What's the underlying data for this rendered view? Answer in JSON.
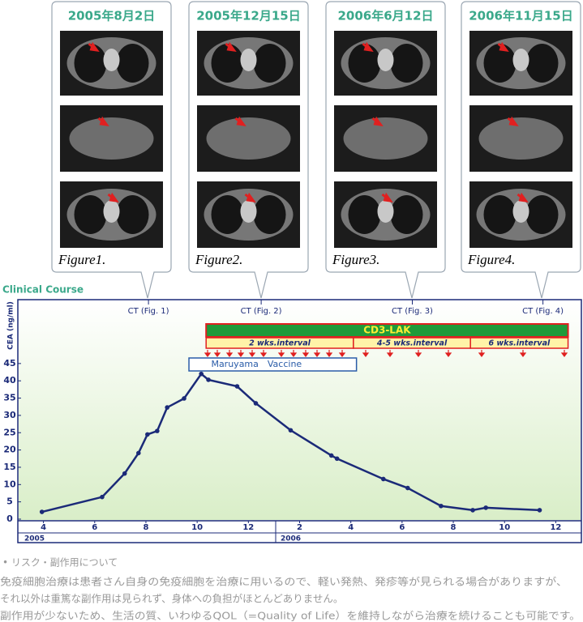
{
  "figures": [
    {
      "date": "2005年8月2日",
      "caption": "Figure1."
    },
    {
      "date": "2005年12月15日",
      "caption": "Figure2."
    },
    {
      "date": "2006年6月12日",
      "caption": "Figure3."
    },
    {
      "date": "2006年11月15日",
      "caption": "Figure4."
    }
  ],
  "chart_data": {
    "type": "line",
    "section_label": "Clinical Course",
    "y_label": "CEA (ng/ml)",
    "x": [
      3.94,
      6.29,
      7.17,
      7.71,
      8.06,
      8.44,
      8.83,
      9.49,
      10.16,
      10.44,
      11.56,
      12.29,
      13.65,
      15.24,
      15.46,
      17.27,
      18.22,
      19.52,
      20.76,
      21.27,
      23.37
    ],
    "values": [
      2.1,
      6.4,
      13.2,
      19.1,
      24.5,
      25.5,
      32.3,
      34.9,
      42,
      40.3,
      38.4,
      33.5,
      25.7,
      18.4,
      17.5,
      11.6,
      9.0,
      3.8,
      2.6,
      3.3,
      2.6
    ],
    "color": "#1b2a78",
    "xlim": [
      3,
      25
    ],
    "ylim": [
      0,
      63
    ],
    "xticks": [
      {
        "value": 4,
        "label": "4"
      },
      {
        "value": 6,
        "label": "6"
      },
      {
        "value": 8,
        "label": "8"
      },
      {
        "value": 10,
        "label": "10"
      },
      {
        "value": 12,
        "label": "12"
      },
      {
        "value": 14,
        "label": "2"
      },
      {
        "value": 16,
        "label": "4"
      },
      {
        "value": 18,
        "label": "6"
      },
      {
        "value": 20,
        "label": "8"
      },
      {
        "value": 22,
        "label": "10"
      },
      {
        "value": 24,
        "label": "12"
      }
    ],
    "yticks": [
      0,
      5,
      10,
      15,
      20,
      25,
      30,
      35,
      40,
      45
    ],
    "years": [
      "2005",
      "2006"
    ],
    "ct_markers": [
      {
        "label": "CT (Fig. 1)",
        "x": 8.1
      },
      {
        "label": "CT (Fig. 2)",
        "x": 12.5
      },
      {
        "label": "CT (Fig. 3)",
        "x": 18.4
      },
      {
        "label": "CT (Fig. 4)",
        "x": 23.5
      }
    ],
    "therapy": {
      "label": "CD3-LAK",
      "start": 10.35,
      "end": 24.48,
      "color": "#1f9a3a",
      "intervals": [
        {
          "label": "2 wks.interval",
          "start": 10.35,
          "end": 16.1
        },
        {
          "label": "4-5 wks.interval",
          "start": 16.1,
          "end": 20.67
        },
        {
          "label": "6 wks.interval",
          "start": 20.67,
          "end": 24.48
        }
      ]
    },
    "vaccine": {
      "label": "Maruyama　Vaccine",
      "start": 9.68,
      "end": 16.22
    }
  },
  "note": {
    "heading": "• リスク・副作用について",
    "lines": [
      "免疫細胞治療は患者さん自身の免疫細胞を治療に用いるので、軽い発熱、発疹等が見られる場合がありますが、",
      "それ以外は重篤な副作用は見られず、身体への負担がほとんどありません。",
      "副作用が少ないため、生活の質、いわゆるQOL（=Quality of Life）を維持しながら治療を続けることも可能です。"
    ]
  }
}
